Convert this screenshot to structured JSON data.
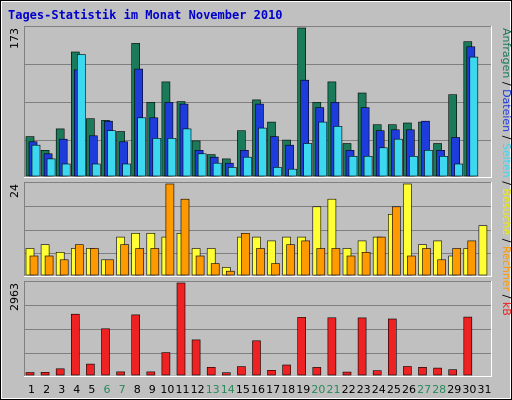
{
  "title": "Tages-Statistik im Monat November 2010",
  "colors": {
    "bg_panel": "#c0c0c0",
    "border": "#000000",
    "grid": "#808080",
    "title": "#0000cc",
    "anfragen": "#1a7a5a",
    "dateien": "#1e3cdc",
    "seiten": "#3cd8f0",
    "besuche": "#ffff33",
    "rechner": "#ff9900",
    "kb": "#ee2222",
    "weekday": "#000000",
    "weekend": "#2a8a5a"
  },
  "right_labels": {
    "top": [
      {
        "text": "Anfragen",
        "color": "#1a7a5a"
      },
      {
        "text": " / ",
        "color": "#000000"
      },
      {
        "text": "Dateien",
        "color": "#1e3cdc"
      },
      {
        "text": " / ",
        "color": "#000000"
      },
      {
        "text": "Seiten",
        "color": "#3cd8f0"
      },
      {
        "text": " / ",
        "color": "#000000"
      },
      {
        "text": "Besuche",
        "color": "#eeee00"
      },
      {
        "text": " / ",
        "color": "#000000"
      },
      {
        "text": "Rechner",
        "color": "#ff9900"
      },
      {
        "text": " / ",
        "color": "#000000"
      },
      {
        "text": "kB",
        "color": "#ee2222"
      }
    ]
  },
  "chart_data": [
    {
      "type": "bar",
      "panel": "top",
      "ymax_label": "173",
      "ylim": [
        0,
        173
      ],
      "categories": [
        "1",
        "2",
        "3",
        "4",
        "5",
        "6",
        "7",
        "8",
        "9",
        "10",
        "11",
        "12",
        "13",
        "14",
        "15",
        "16",
        "17",
        "18",
        "19",
        "20",
        "21",
        "22",
        "23",
        "24",
        "25",
        "26",
        "27",
        "28",
        "29",
        "30",
        "31"
      ],
      "series": [
        {
          "name": "Anfragen",
          "color_key": "anfragen",
          "values": [
            46,
            30,
            55,
            145,
            67,
            65,
            52,
            155,
            86,
            110,
            87,
            41,
            25,
            20,
            53,
            89,
            63,
            42,
            173,
            86,
            110,
            38,
            97,
            60,
            60,
            62,
            63,
            38,
            95,
            157,
            0
          ]
        },
        {
          "name": "Dateien",
          "color_key": "dateien",
          "values": [
            40,
            26,
            43,
            124,
            47,
            64,
            40,
            125,
            68,
            86,
            84,
            30,
            22,
            15,
            30,
            84,
            46,
            36,
            112,
            80,
            86,
            30,
            80,
            53,
            54,
            54,
            64,
            30,
            45,
            151,
            0
          ]
        },
        {
          "name": "Seiten",
          "color_key": "seiten",
          "values": [
            36,
            20,
            14,
            142,
            14,
            53,
            14,
            68,
            44,
            44,
            55,
            26,
            15,
            10,
            22,
            56,
            10,
            8,
            38,
            63,
            58,
            23,
            23,
            33,
            43,
            23,
            30,
            23,
            14,
            139,
            0
          ]
        }
      ]
    },
    {
      "type": "bar",
      "panel": "middle",
      "ymax_label": "24",
      "ylim": [
        0,
        24
      ],
      "categories": [
        "1",
        "2",
        "3",
        "4",
        "5",
        "6",
        "7",
        "8",
        "9",
        "10",
        "11",
        "12",
        "13",
        "14",
        "15",
        "16",
        "17",
        "18",
        "19",
        "20",
        "21",
        "22",
        "23",
        "24",
        "25",
        "26",
        "27",
        "28",
        "29",
        "30",
        "31"
      ],
      "series": [
        {
          "name": "Besuche",
          "color_key": "besuche",
          "values": [
            7,
            8,
            6,
            7,
            7,
            4,
            10,
            11,
            11,
            10,
            11,
            7,
            7,
            2,
            10,
            10,
            9,
            10,
            10,
            18,
            20,
            7,
            9,
            10,
            16,
            24,
            8,
            9,
            5,
            7,
            13
          ]
        },
        {
          "name": "Rechner",
          "color_key": "rechner",
          "values": [
            5,
            5,
            4,
            8,
            7,
            4,
            8,
            7,
            7,
            24,
            20,
            5,
            3,
            1,
            11,
            7,
            3,
            8,
            9,
            7,
            7,
            5,
            6,
            10,
            18,
            5,
            7,
            4,
            7,
            9,
            0
          ]
        }
      ]
    },
    {
      "type": "bar",
      "panel": "bottom",
      "ymax_label": "2963",
      "ylim": [
        0,
        2963
      ],
      "categories": [
        "1",
        "2",
        "3",
        "4",
        "5",
        "6",
        "7",
        "8",
        "9",
        "10",
        "11",
        "12",
        "13",
        "14",
        "15",
        "16",
        "17",
        "18",
        "19",
        "20",
        "21",
        "22",
        "23",
        "24",
        "25",
        "26",
        "27",
        "28",
        "29",
        "30",
        "31"
      ],
      "series": [
        {
          "name": "kB",
          "color_key": "kb",
          "values": [
            82,
            88,
            200,
            1958,
            350,
            1489,
            100,
            1936,
            100,
            720,
            2963,
            1130,
            247,
            75,
            270,
            1103,
            151,
            323,
            1855,
            244,
            1843,
            95,
            1840,
            137,
            1803,
            275,
            247,
            222,
            170,
            1864,
            0
          ]
        }
      ]
    }
  ],
  "x_axis": {
    "labels": [
      "1",
      "2",
      "3",
      "4",
      "5",
      "6",
      "7",
      "8",
      "9",
      "10",
      "11",
      "12",
      "13",
      "14",
      "15",
      "16",
      "17",
      "18",
      "19",
      "20",
      "21",
      "22",
      "23",
      "24",
      "25",
      "26",
      "27",
      "28",
      "29",
      "30",
      "31"
    ],
    "weekend": [
      6,
      7,
      13,
      14,
      20,
      21,
      27,
      28
    ]
  }
}
